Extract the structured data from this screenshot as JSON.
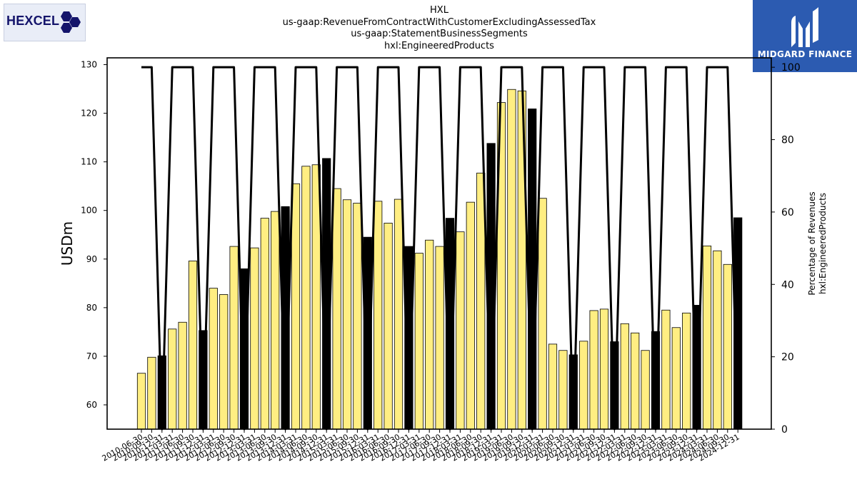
{
  "header": {
    "titles": [
      "HXL",
      "us-gaap:RevenueFromContractWithCustomerExcludingAssessedTax",
      "us-gaap:StatementBusinessSegments",
      "hxl:EngineeredProducts"
    ]
  },
  "logo_left": {
    "text": "HEXCEL",
    "mark": "®",
    "color": "#14146b"
  },
  "logo_right": {
    "text": "MIDGARD FINANCE",
    "background": "#2c5bb1"
  },
  "chart_data": {
    "type": "bar",
    "ylabel": "USDm",
    "y2label_lines": [
      "Percentage of Revenues",
      "hxl:EngineeredProducts"
    ],
    "ylim": [
      55,
      131.4
    ],
    "y2lim": [
      0,
      102.6
    ],
    "yticks": [
      60,
      70,
      80,
      90,
      100,
      110,
      120,
      130
    ],
    "y2ticks": [
      0,
      20,
      40,
      60,
      80,
      100
    ],
    "colors": {
      "bar": "#ffee82",
      "q4_bar": "#000000",
      "line": "#000000"
    },
    "categories": [
      "2010-06-30",
      "2010-09-30",
      "2010-12-31",
      "2011-03-31",
      "2011-06-30",
      "2011-09-30",
      "2011-12-31",
      "2012-03-31",
      "2012-06-30",
      "2012-09-30",
      "2012-12-31",
      "2013-03-31",
      "2013-06-30",
      "2013-09-30",
      "2013-12-31",
      "2014-03-31",
      "2014-06-30",
      "2014-09-30",
      "2014-12-31",
      "2015-03-31",
      "2015-06-30",
      "2015-09-30",
      "2015-12-31",
      "2016-03-31",
      "2016-06-30",
      "2016-09-30",
      "2016-12-31",
      "2017-03-31",
      "2017-06-30",
      "2017-09-30",
      "2017-12-31",
      "2018-03-31",
      "2018-06-30",
      "2018-09-30",
      "2018-12-31",
      "2019-03-31",
      "2019-06-30",
      "2019-09-30",
      "2019-12-31",
      "2020-03-31",
      "2020-06-30",
      "2020-09-30",
      "2020-12-31",
      "2021-03-31",
      "2021-06-30",
      "2021-09-30",
      "2021-12-31",
      "2022-03-31",
      "2022-06-30",
      "2022-09-30",
      "2022-12-31",
      "2023-03-31",
      "2023-06-30",
      "2023-09-30",
      "2023-12-31",
      "2024-03-31",
      "2024-06-30",
      "2024-09-30",
      "2024-12-31"
    ],
    "series": [
      {
        "values": [
          66.5,
          69.8,
          70.1,
          75.6,
          77.0,
          89.6,
          75.3,
          84.0,
          82.7,
          92.6,
          88.0,
          92.3,
          98.4,
          99.8,
          100.8,
          105.5,
          109.1,
          109.4,
          110.7,
          104.5,
          102.2,
          101.5,
          94.5,
          101.9,
          97.4,
          102.3,
          92.6,
          91.2,
          93.9,
          92.6,
          98.4,
          95.6,
          101.7,
          107.7,
          113.8,
          122.2,
          124.9,
          124.6,
          120.9,
          102.5,
          72.5,
          71.2,
          70.3,
          73.1,
          79.4,
          79.7,
          73.0,
          76.7,
          74.8,
          71.2,
          75.1,
          79.5,
          75.9,
          78.9,
          80.5,
          92.7,
          91.7,
          88.9,
          98.5
        ]
      },
      {
        "values": [
          100,
          100,
          0,
          100,
          100,
          100,
          0,
          100,
          100,
          100,
          0,
          100,
          100,
          100,
          0,
          100,
          100,
          100,
          0,
          100,
          100,
          100,
          0,
          100,
          100,
          100,
          0,
          100,
          100,
          100,
          0,
          100,
          100,
          100,
          0,
          100,
          100,
          100,
          0,
          100,
          100,
          100,
          0,
          100,
          100,
          100,
          0,
          100,
          100,
          100,
          0,
          100,
          100,
          100,
          0,
          100,
          100,
          100,
          0
        ]
      }
    ]
  }
}
